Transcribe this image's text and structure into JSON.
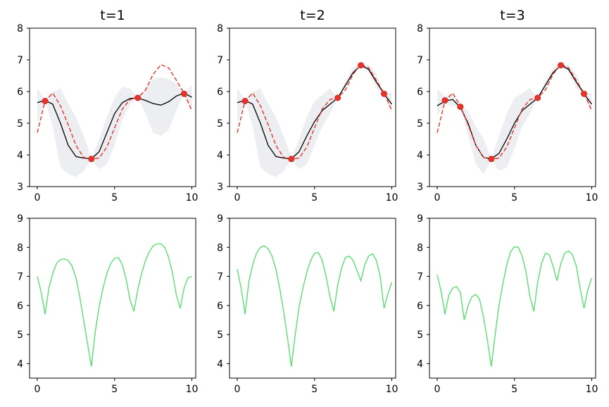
{
  "chart_data": [
    {
      "type": "line",
      "title": "t=1",
      "xlim": [
        -0.5,
        10.25
      ],
      "ylim": [
        3,
        8
      ],
      "xticks": [
        0,
        5,
        10
      ],
      "yticks": [
        3,
        4,
        5,
        6,
        7,
        8
      ],
      "x": [
        0,
        0.5,
        1,
        1.5,
        2,
        2.5,
        3,
        3.5,
        4,
        4.5,
        5,
        5.5,
        6,
        6.5,
        7,
        7.5,
        8,
        8.5,
        9,
        9.5,
        10
      ],
      "band": {
        "lower": [
          5.0,
          5.7,
          4.9,
          3.6,
          3.4,
          3.3,
          3.5,
          3.85,
          3.55,
          3.7,
          4.3,
          5.1,
          5.6,
          5.8,
          5.3,
          4.7,
          4.6,
          4.8,
          5.4,
          5.95,
          5.4
        ],
        "upper": [
          6.1,
          5.75,
          6.0,
          6.1,
          5.6,
          5.2,
          4.6,
          3.9,
          4.5,
          5.2,
          5.8,
          6.15,
          6.1,
          5.8,
          6.1,
          6.4,
          6.45,
          6.4,
          6.25,
          5.95,
          6.2
        ],
        "color": "#eceef1"
      },
      "series": [
        {
          "style": "mean",
          "color": "#000000",
          "values": [
            5.65,
            5.72,
            5.6,
            5.0,
            4.3,
            3.95,
            3.9,
            3.88,
            4.1,
            4.7,
            5.3,
            5.65,
            5.78,
            5.8,
            5.72,
            5.62,
            5.57,
            5.68,
            5.86,
            5.95,
            5.82
          ]
        },
        {
          "style": "truth",
          "color": "#e8332a",
          "values": [
            4.7,
            5.7,
            5.95,
            5.55,
            4.95,
            4.3,
            3.92,
            3.88,
            3.9,
            4.25,
            4.85,
            5.45,
            5.75,
            5.8,
            6.05,
            6.55,
            6.85,
            6.75,
            6.35,
            5.95,
            5.4
          ]
        }
      ],
      "points": {
        "color": "#e8332a",
        "x": [
          0.5,
          3.5,
          6.5,
          9.5
        ],
        "y": [
          5.7,
          3.87,
          5.8,
          5.93
        ]
      }
    },
    {
      "type": "line",
      "title": "t=2",
      "xlim": [
        -0.5,
        10.25
      ],
      "ylim": [
        3,
        8
      ],
      "xticks": [
        0,
        5,
        10
      ],
      "yticks": [
        3,
        4,
        5,
        6,
        7,
        8
      ],
      "x": [
        0,
        0.5,
        1,
        1.5,
        2,
        2.5,
        3,
        3.5,
        4,
        4.5,
        5,
        5.5,
        6,
        6.5,
        7,
        7.5,
        8,
        8.5,
        9,
        9.5,
        10
      ],
      "band": {
        "lower": [
          5.0,
          5.7,
          4.9,
          3.6,
          3.4,
          3.3,
          3.5,
          3.85,
          3.55,
          3.7,
          4.3,
          4.9,
          5.3,
          5.8,
          6.1,
          6.55,
          6.82,
          6.6,
          6.1,
          5.92,
          5.3
        ],
        "upper": [
          6.1,
          5.75,
          6.0,
          6.1,
          5.6,
          5.2,
          4.6,
          3.9,
          4.5,
          5.2,
          5.7,
          5.9,
          6.1,
          5.8,
          6.35,
          6.75,
          6.85,
          6.85,
          6.55,
          5.96,
          5.95
        ],
        "color": "#eceef1"
      },
      "series": [
        {
          "style": "mean",
          "color": "#000000",
          "values": [
            5.65,
            5.72,
            5.6,
            5.0,
            4.3,
            3.95,
            3.9,
            3.88,
            4.1,
            4.6,
            5.05,
            5.4,
            5.6,
            5.8,
            6.2,
            6.6,
            6.83,
            6.7,
            6.3,
            5.93,
            5.6
          ]
        },
        {
          "style": "truth",
          "color": "#e8332a",
          "values": [
            4.7,
            5.7,
            5.95,
            5.55,
            4.95,
            4.3,
            3.92,
            3.88,
            3.9,
            4.25,
            4.85,
            5.45,
            5.75,
            5.8,
            6.05,
            6.55,
            6.85,
            6.75,
            6.35,
            5.95,
            5.4
          ]
        }
      ],
      "points": {
        "color": "#e8332a",
        "x": [
          0.5,
          3.5,
          6.5,
          8,
          9.5
        ],
        "y": [
          5.7,
          3.87,
          5.8,
          6.83,
          5.93
        ]
      }
    },
    {
      "type": "line",
      "title": "t=3",
      "xlim": [
        -0.5,
        10.25
      ],
      "ylim": [
        3,
        8
      ],
      "xticks": [
        0,
        5,
        10
      ],
      "yticks": [
        3,
        4,
        5,
        6,
        7,
        8
      ],
      "x": [
        0,
        0.5,
        1,
        1.5,
        2,
        2.5,
        3,
        3.5,
        4,
        4.5,
        5,
        5.5,
        6,
        6.5,
        7,
        7.5,
        8,
        8.5,
        9,
        9.5,
        10
      ],
      "band": {
        "lower": [
          5.25,
          5.6,
          5.55,
          5.5,
          4.6,
          3.7,
          3.4,
          3.85,
          3.5,
          3.6,
          4.2,
          4.9,
          5.3,
          5.8,
          6.1,
          6.55,
          6.82,
          6.6,
          6.1,
          5.92,
          5.3
        ],
        "upper": [
          6.05,
          5.85,
          5.95,
          5.55,
          5.4,
          4.9,
          4.5,
          3.9,
          4.6,
          5.3,
          5.8,
          5.95,
          6.1,
          5.8,
          6.35,
          6.75,
          6.85,
          6.85,
          6.55,
          5.96,
          5.95
        ],
        "color": "#eceef1"
      },
      "series": [
        {
          "style": "mean",
          "color": "#000000",
          "values": [
            5.55,
            5.7,
            5.75,
            5.5,
            5.0,
            4.3,
            3.92,
            3.88,
            4.05,
            4.5,
            5.0,
            5.4,
            5.6,
            5.8,
            6.2,
            6.6,
            6.83,
            6.7,
            6.3,
            5.93,
            5.6
          ]
        },
        {
          "style": "truth",
          "color": "#e8332a",
          "values": [
            4.7,
            5.7,
            5.95,
            5.55,
            4.95,
            4.3,
            3.92,
            3.88,
            3.9,
            4.25,
            4.85,
            5.45,
            5.75,
            5.8,
            6.05,
            6.55,
            6.85,
            6.75,
            6.35,
            5.95,
            5.4
          ]
        }
      ],
      "points": {
        "color": "#e8332a",
        "x": [
          0.5,
          1.5,
          3.5,
          6.5,
          8,
          9.5
        ],
        "y": [
          5.72,
          5.52,
          3.87,
          5.8,
          6.83,
          5.93
        ]
      }
    },
    {
      "type": "line",
      "title": "",
      "xlim": [
        -0.5,
        10.25
      ],
      "ylim": [
        3.5,
        9
      ],
      "xticks": [
        0,
        5,
        10
      ],
      "yticks": [
        4,
        5,
        6,
        7,
        8,
        9
      ],
      "x": [
        0,
        0.25,
        0.5,
        0.75,
        1,
        1.25,
        1.5,
        1.75,
        2,
        2.25,
        2.5,
        2.75,
        3,
        3.25,
        3.5,
        3.75,
        4,
        4.25,
        4.5,
        4.75,
        5,
        5.25,
        5.5,
        5.75,
        6,
        6.25,
        6.5,
        6.75,
        7,
        7.25,
        7.5,
        7.75,
        8,
        8.25,
        8.5,
        8.75,
        9,
        9.25,
        9.5,
        9.75,
        10
      ],
      "series": [
        {
          "style": "acquisition",
          "color": "#5bdd72",
          "values": [
            7.0,
            6.45,
            5.7,
            6.6,
            7.1,
            7.45,
            7.58,
            7.6,
            7.55,
            7.35,
            6.95,
            6.3,
            5.5,
            4.7,
            3.9,
            5.1,
            5.95,
            6.6,
            7.1,
            7.45,
            7.62,
            7.65,
            7.4,
            6.9,
            6.2,
            5.8,
            6.55,
            7.1,
            7.55,
            7.85,
            8.05,
            8.12,
            8.12,
            8.0,
            7.65,
            7.1,
            6.35,
            5.9,
            6.6,
            6.95,
            7.0
          ]
        }
      ]
    },
    {
      "type": "line",
      "title": "",
      "xlim": [
        -0.5,
        10.25
      ],
      "ylim": [
        3.5,
        9
      ],
      "xticks": [
        0,
        5,
        10
      ],
      "yticks": [
        4,
        5,
        6,
        7,
        8,
        9
      ],
      "x": [
        0,
        0.25,
        0.5,
        0.75,
        1,
        1.25,
        1.5,
        1.75,
        2,
        2.25,
        2.5,
        2.75,
        3,
        3.25,
        3.5,
        3.75,
        4,
        4.25,
        4.5,
        4.75,
        5,
        5.25,
        5.5,
        5.75,
        6,
        6.25,
        6.5,
        6.75,
        7,
        7.25,
        7.5,
        7.75,
        8,
        8.25,
        8.5,
        8.75,
        9,
        9.25,
        9.5,
        9.75,
        10
      ],
      "series": [
        {
          "style": "acquisition",
          "color": "#5bdd72",
          "values": [
            7.25,
            6.6,
            5.7,
            6.8,
            7.4,
            7.8,
            8.0,
            8.05,
            7.95,
            7.7,
            7.25,
            6.6,
            5.8,
            4.9,
            3.9,
            5.0,
            5.95,
            6.6,
            7.15,
            7.55,
            7.8,
            7.82,
            7.55,
            7.0,
            6.3,
            5.8,
            6.7,
            7.3,
            7.65,
            7.7,
            7.55,
            7.2,
            6.85,
            7.4,
            7.7,
            7.78,
            7.55,
            7.0,
            5.9,
            6.4,
            6.8
          ]
        }
      ]
    },
    {
      "type": "line",
      "title": "",
      "xlim": [
        -0.5,
        10.25
      ],
      "ylim": [
        3.5,
        9
      ],
      "xticks": [
        0,
        5,
        10
      ],
      "yticks": [
        4,
        5,
        6,
        7,
        8,
        9
      ],
      "x": [
        0,
        0.25,
        0.5,
        0.75,
        1,
        1.25,
        1.5,
        1.75,
        2,
        2.25,
        2.5,
        2.75,
        3,
        3.25,
        3.5,
        3.75,
        4,
        4.25,
        4.5,
        4.75,
        5,
        5.25,
        5.5,
        5.75,
        6,
        6.25,
        6.5,
        6.75,
        7,
        7.25,
        7.5,
        7.75,
        8,
        8.25,
        8.5,
        8.75,
        9,
        9.25,
        9.5,
        9.75,
        10
      ],
      "series": [
        {
          "style": "acquisition",
          "color": "#5bdd72",
          "values": [
            7.05,
            6.5,
            5.7,
            6.35,
            6.6,
            6.65,
            6.45,
            5.5,
            6.0,
            6.3,
            6.38,
            6.2,
            5.6,
            4.8,
            3.9,
            5.0,
            6.0,
            6.75,
            7.4,
            7.85,
            8.02,
            8.0,
            7.7,
            7.15,
            6.3,
            5.8,
            6.8,
            7.45,
            7.8,
            7.75,
            7.35,
            6.85,
            7.45,
            7.8,
            7.88,
            7.75,
            7.35,
            6.6,
            5.9,
            6.55,
            6.95
          ]
        }
      ]
    }
  ]
}
